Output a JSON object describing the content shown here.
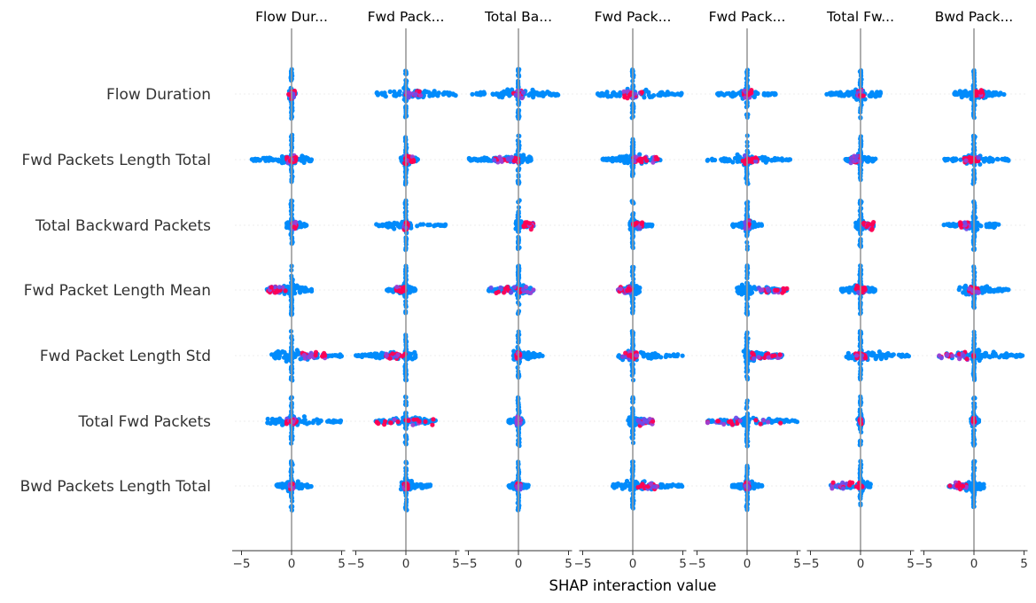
{
  "chart_data": {
    "type": "scatter",
    "subtype": "shap-interaction-beeswarm-matrix",
    "xlabel": "SHAP interaction value",
    "xlim": [
      -5,
      5
    ],
    "xticks": [
      -5,
      0,
      5
    ],
    "tick_labels": [
      "−5",
      "0",
      "5"
    ],
    "column_titles": [
      "Flow Dur...",
      "Fwd Pack...",
      "Total Ba...",
      "Fwd Pack...",
      "Fwd Pack...",
      "Total Fw...",
      "Bwd Pack..."
    ],
    "row_labels": [
      "Flow Duration",
      "Fwd Packets Length Total",
      "Total Backward Packets",
      "Fwd Packet Length Mean",
      "Fwd Packet Length Std",
      "Total Fwd Packets",
      "Bwd Packets Length Total"
    ],
    "colors": {
      "low": "#008bfb",
      "high": "#ff0052",
      "zero_line": "#999999",
      "row_guide": "#eeeeee",
      "axis": "#333333"
    },
    "cells": [
      [
        {
          "min": -0.3,
          "max": 0.4,
          "hmin": -0.3,
          "hmax": 0.3
        },
        {
          "min": -3.0,
          "max": 5.0,
          "hmin": 0.0,
          "hmax": 1.5
        },
        {
          "min": -5.0,
          "max": 4.0,
          "hmin": -0.5,
          "hmax": 0.5
        },
        {
          "min": -3.5,
          "max": 5.0,
          "hmin": -1.0,
          "hmax": 1.0
        },
        {
          "min": -3.0,
          "max": 3.0,
          "hmin": -0.5,
          "hmax": 0.5
        },
        {
          "min": -3.5,
          "max": 2.0,
          "hmin": -0.3,
          "hmax": 0.3
        },
        {
          "min": -2.0,
          "max": 3.0,
          "hmin": 0.0,
          "hmax": 1.0
        }
      ],
      [
        {
          "min": -4.0,
          "max": 2.0,
          "hmin": -0.5,
          "hmax": 0.5
        },
        {
          "min": -0.5,
          "max": 1.2,
          "hmin": -0.3,
          "hmax": 0.8
        },
        {
          "min": -5.0,
          "max": 1.5,
          "hmin": -2.5,
          "hmax": 0.0
        },
        {
          "min": -3.0,
          "max": 3.0,
          "hmin": 0.0,
          "hmax": 2.5
        },
        {
          "min": -4.0,
          "max": 4.5,
          "hmin": -0.5,
          "hmax": 1.0
        },
        {
          "min": -1.5,
          "max": 1.5,
          "hmin": -1.0,
          "hmax": 0.0
        },
        {
          "min": -3.0,
          "max": 3.5,
          "hmin": -1.0,
          "hmax": 0.5
        }
      ],
      [
        {
          "min": -0.5,
          "max": 1.5,
          "hmin": 0.0,
          "hmax": 0.5
        },
        {
          "min": -3.0,
          "max": 4.0,
          "hmin": -0.2,
          "hmax": 0.2
        },
        {
          "min": -0.3,
          "max": 1.5,
          "hmin": 0.5,
          "hmax": 1.5
        },
        {
          "min": -0.3,
          "max": 2.0,
          "hmin": 0.0,
          "hmax": 1.0
        },
        {
          "min": -1.5,
          "max": 1.5,
          "hmin": -0.2,
          "hmax": 0.2
        },
        {
          "min": -0.5,
          "max": 1.3,
          "hmin": 0.3,
          "hmax": 1.3
        },
        {
          "min": -3.0,
          "max": 2.5,
          "hmin": -1.5,
          "hmax": -0.5
        }
      ],
      [
        {
          "min": -2.5,
          "max": 2.0,
          "hmin": -2.5,
          "hmax": -0.5
        },
        {
          "min": -2.0,
          "max": 1.0,
          "hmin": -1.0,
          "hmax": 0.0
        },
        {
          "min": -3.0,
          "max": 1.5,
          "hmin": -2.8,
          "hmax": 1.5
        },
        {
          "min": -1.5,
          "max": 0.7,
          "hmin": -1.5,
          "hmax": 0.0
        },
        {
          "min": -1.0,
          "max": 4.0,
          "hmin": 0.5,
          "hmax": 4.0
        },
        {
          "min": -2.0,
          "max": 1.5,
          "hmin": -0.5,
          "hmax": 0.5
        },
        {
          "min": -1.5,
          "max": 3.5,
          "hmin": -0.5,
          "hmax": 0.5
        }
      ],
      [
        {
          "min": -2.0,
          "max": 5.0,
          "hmin": 1.0,
          "hmax": 3.5
        },
        {
          "min": -5.0,
          "max": 1.0,
          "hmin": -2.0,
          "hmax": 0.0
        },
        {
          "min": -0.5,
          "max": 2.5,
          "hmin": -0.2,
          "hmax": 0.2
        },
        {
          "min": -1.5,
          "max": 5.0,
          "hmin": -1.0,
          "hmax": 0.5
        },
        {
          "min": -0.5,
          "max": 3.5,
          "hmin": 0.5,
          "hmax": 3.5
        },
        {
          "min": -1.5,
          "max": 5.0,
          "hmin": -0.5,
          "hmax": 0.5
        },
        {
          "min": -3.5,
          "max": 5.0,
          "hmin": -3.5,
          "hmax": 0.0
        }
      ],
      [
        {
          "min": -2.5,
          "max": 5.0,
          "hmin": -0.5,
          "hmax": 0.5
        },
        {
          "min": -3.0,
          "max": 3.0,
          "hmin": -3.0,
          "hmax": 3.0
        },
        {
          "min": -1.0,
          "max": 0.5,
          "hmin": -0.2,
          "hmax": 0.2
        },
        {
          "min": -0.5,
          "max": 2.0,
          "hmin": 0.5,
          "hmax": 2.0
        },
        {
          "min": -4.0,
          "max": 5.0,
          "hmin": -4.0,
          "hmax": 3.5
        },
        {
          "min": -0.2,
          "max": 0.2,
          "hmin": -0.1,
          "hmax": 0.1
        },
        {
          "min": -0.3,
          "max": 0.5,
          "hmin": -0.1,
          "hmax": 0.1
        }
      ],
      [
        {
          "min": -1.5,
          "max": 2.0,
          "hmin": -0.2,
          "hmax": 0.2
        },
        {
          "min": -0.5,
          "max": 2.5,
          "hmin": -0.2,
          "hmax": 0.2
        },
        {
          "min": -1.0,
          "max": 1.0,
          "hmin": -0.2,
          "hmax": 0.2
        },
        {
          "min": -2.0,
          "max": 5.0,
          "hmin": 0.5,
          "hmax": 2.5
        },
        {
          "min": -1.5,
          "max": 1.5,
          "hmin": -0.2,
          "hmax": 0.2
        },
        {
          "min": -3.0,
          "max": 1.0,
          "hmin": -3.0,
          "hmax": 0.5
        },
        {
          "min": -2.5,
          "max": 1.0,
          "hmin": -2.5,
          "hmax": -0.5
        }
      ]
    ]
  }
}
